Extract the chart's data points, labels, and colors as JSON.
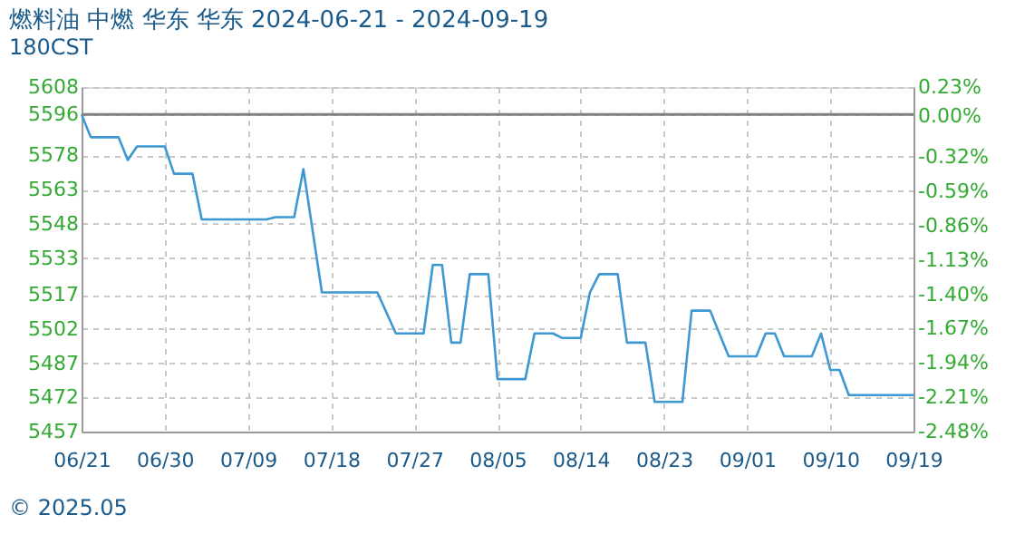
{
  "chart_data": {
    "type": "line",
    "title": "燃料油 中燃 华东 华东 2024-06-21 - 2024-09-19",
    "subtitle": "180CST",
    "x": [
      "2024-06-21",
      "2024-06-22",
      "2024-06-25",
      "2024-06-26",
      "2024-06-27",
      "2024-06-30",
      "2024-07-01",
      "2024-07-03",
      "2024-07-04",
      "2024-07-11",
      "2024-07-12",
      "2024-07-14",
      "2024-07-15",
      "2024-07-17",
      "2024-07-23",
      "2024-07-25",
      "2024-07-28",
      "2024-07-29",
      "2024-07-30",
      "2024-07-31",
      "2024-08-01",
      "2024-08-02",
      "2024-08-04",
      "2024-08-05",
      "2024-08-08",
      "2024-08-09",
      "2024-08-11",
      "2024-08-12",
      "2024-08-14",
      "2024-08-15",
      "2024-08-16",
      "2024-08-18",
      "2024-08-19",
      "2024-08-21",
      "2024-08-22",
      "2024-08-25",
      "2024-08-26",
      "2024-08-28",
      "2024-08-30",
      "2024-09-02",
      "2024-09-03",
      "2024-09-04",
      "2024-09-05",
      "2024-09-08",
      "2024-09-09",
      "2024-09-10",
      "2024-09-11",
      "2024-09-12",
      "2024-09-19"
    ],
    "series": [
      {
        "color": "#3c97d3",
        "values": [
          5596,
          5586,
          5586,
          5576,
          5582,
          5582,
          5570,
          5570,
          5550,
          5550,
          5551,
          5551,
          5572,
          5518,
          5518,
          5500,
          5500,
          5530,
          5530,
          5496,
          5496,
          5526,
          5526,
          5480,
          5480,
          5500,
          5500,
          5498,
          5498,
          5518,
          5526,
          5526,
          5496,
          5496,
          5470,
          5470,
          5510,
          5510,
          5490,
          5490,
          5500,
          5500,
          5490,
          5490,
          5500,
          5484,
          5484,
          5473,
          5473
        ]
      }
    ],
    "xlim": [
      "2024-06-21",
      "2024-09-19"
    ],
    "xticks": [
      {
        "value": "2024-06-21",
        "label": "06/21"
      },
      {
        "value": "2024-06-30",
        "label": "06/30"
      },
      {
        "value": "2024-07-09",
        "label": "07/09"
      },
      {
        "value": "2024-07-18",
        "label": "07/18"
      },
      {
        "value": "2024-07-27",
        "label": "07/27"
      },
      {
        "value": "2024-08-05",
        "label": "08/05"
      },
      {
        "value": "2024-08-14",
        "label": "08/14"
      },
      {
        "value": "2024-08-23",
        "label": "08/23"
      },
      {
        "value": "2024-09-01",
        "label": "09/01"
      },
      {
        "value": "2024-09-10",
        "label": "09/10"
      },
      {
        "value": "2024-09-19",
        "label": "09/19"
      }
    ],
    "ylim": [
      5457,
      5608
    ],
    "yticks": [
      5457,
      5472,
      5487,
      5502,
      5517,
      5533,
      5548,
      5563,
      5578,
      5596,
      5608
    ],
    "y2lim": [
      -2.48,
      0.23
    ],
    "y2ticks": [
      {
        "value": -2.48,
        "label": "-2.48%"
      },
      {
        "value": -2.21,
        "label": "-2.21%"
      },
      {
        "value": -1.94,
        "label": "-1.94%"
      },
      {
        "value": -1.67,
        "label": "-1.67%"
      },
      {
        "value": -1.4,
        "label": "-1.40%"
      },
      {
        "value": -1.13,
        "label": "-1.13%"
      },
      {
        "value": -0.86,
        "label": "-0.86%"
      },
      {
        "value": -0.59,
        "label": "-0.59%"
      },
      {
        "value": -0.32,
        "label": "-0.32%"
      },
      {
        "value": 0,
        "label": "0.00%"
      },
      {
        "value": 0.23,
        "label": "0.23%"
      }
    ],
    "ref_lines": [
      {
        "axis": "y",
        "value": 5596,
        "color": "#808080",
        "line_style": "solid"
      }
    ],
    "grid": true,
    "marker": "none",
    "line_style": "solid",
    "annotations": [
      "© 2025.05"
    ]
  }
}
